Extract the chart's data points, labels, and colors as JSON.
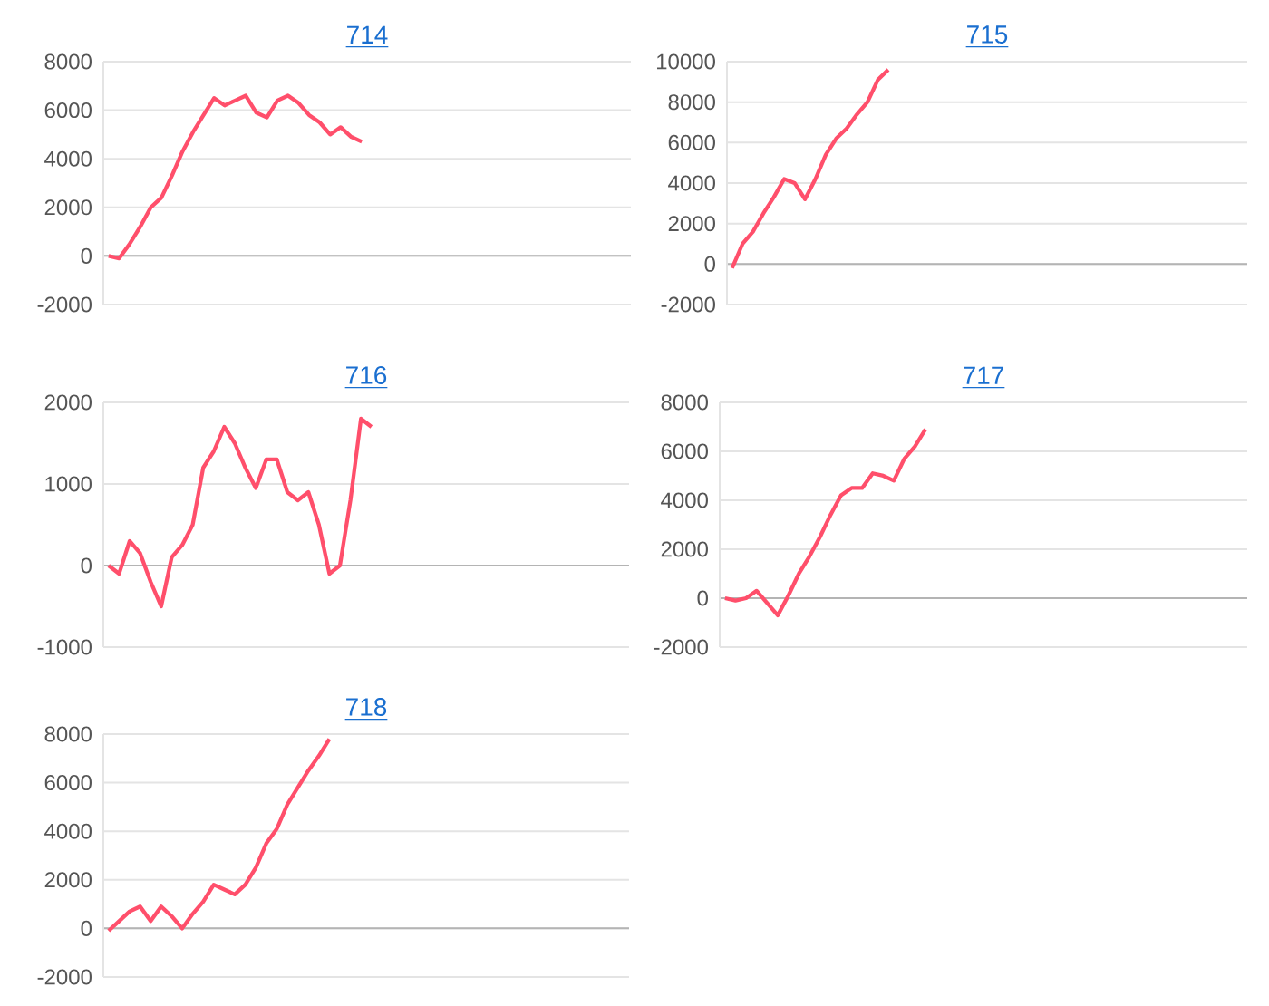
{
  "chart_data": [
    {
      "type": "line",
      "title": "714",
      "color": "#ff4f6b",
      "ylim": [
        -2000,
        8000
      ],
      "yticks": [
        -2000,
        0,
        2000,
        4000,
        6000,
        8000
      ],
      "grid": "y",
      "tick_labels": "y",
      "categories": [
        null,
        null,
        null,
        null,
        null,
        null,
        null,
        null,
        null,
        null,
        null,
        null,
        null,
        null,
        null,
        null,
        null,
        null,
        null,
        null,
        null,
        null,
        null,
        null,
        null,
        null,
        null,
        null,
        null,
        null,
        null,
        null,
        null,
        null,
        null,
        null,
        null,
        null,
        null,
        null,
        null,
        null,
        null,
        null,
        null,
        null,
        null,
        null,
        null,
        null
      ],
      "values": [
        0,
        -100,
        500,
        1200,
        2000,
        2400,
        3300,
        4300,
        5100,
        5800,
        6500,
        6200,
        6400,
        6600,
        5900,
        5700,
        6400,
        6600,
        6300,
        5800,
        5500,
        5000,
        5300,
        4900,
        4700,
        null,
        null,
        null,
        null,
        null,
        null,
        null,
        null,
        null,
        null,
        null,
        null,
        null,
        null,
        null,
        null,
        null,
        null,
        null,
        null,
        null,
        null,
        null,
        null,
        null
      ]
    },
    {
      "type": "line",
      "title": "715",
      "color": "#ff4f6b",
      "ylim": [
        -2000,
        10000
      ],
      "yticks": [
        -2000,
        0,
        2000,
        4000,
        6000,
        8000,
        10000
      ],
      "grid": "y",
      "tick_labels": "y",
      "categories": [
        null,
        null,
        null,
        null,
        null,
        null,
        null,
        null,
        null,
        null,
        null,
        null,
        null,
        null,
        null,
        null,
        null,
        null,
        null,
        null,
        null,
        null,
        null,
        null,
        null,
        null,
        null,
        null,
        null,
        null,
        null,
        null,
        null,
        null,
        null,
        null,
        null,
        null,
        null,
        null,
        null,
        null,
        null,
        null,
        null,
        null,
        null,
        null,
        null,
        null
      ],
      "values": [
        -200,
        1000,
        1600,
        2500,
        3300,
        4200,
        4000,
        3200,
        4200,
        5400,
        6200,
        6700,
        7400,
        8000,
        9100,
        9600,
        null,
        null,
        null,
        null,
        null,
        null,
        null,
        null,
        null,
        null,
        null,
        null,
        null,
        null,
        null,
        null,
        null,
        null,
        null,
        null,
        null,
        null,
        null,
        null,
        null,
        null,
        null,
        null,
        null,
        null,
        null,
        null,
        null,
        null
      ]
    },
    {
      "type": "line",
      "title": "716",
      "color": "#ff4f6b",
      "ylim": [
        -1000,
        2000
      ],
      "yticks": [
        -1000,
        0,
        1000,
        2000
      ],
      "grid": "y",
      "tick_labels": "y",
      "categories": [
        null,
        null,
        null,
        null,
        null,
        null,
        null,
        null,
        null,
        null,
        null,
        null,
        null,
        null,
        null,
        null,
        null,
        null,
        null,
        null,
        null,
        null,
        null,
        null,
        null,
        null,
        null,
        null,
        null,
        null,
        null,
        null,
        null,
        null,
        null,
        null,
        null,
        null,
        null,
        null,
        null,
        null,
        null,
        null,
        null,
        null,
        null,
        null,
        null,
        null
      ],
      "values": [
        0,
        -100,
        300,
        150,
        -200,
        -500,
        100,
        250,
        500,
        1200,
        1400,
        1700,
        1500,
        1200,
        950,
        1300,
        1300,
        900,
        800,
        900,
        500,
        -100,
        0,
        800,
        1800,
        1700,
        null,
        null,
        null,
        null,
        null,
        null,
        null,
        null,
        null,
        null,
        null,
        null,
        null,
        null,
        null,
        null,
        null,
        null,
        null,
        null,
        null,
        null,
        null,
        null
      ]
    },
    {
      "type": "line",
      "title": "717",
      "color": "#ff4f6b",
      "ylim": [
        -2000,
        8000
      ],
      "yticks": [
        -2000,
        0,
        2000,
        4000,
        6000,
        8000
      ],
      "grid": "y",
      "tick_labels": "y",
      "categories": [
        null,
        null,
        null,
        null,
        null,
        null,
        null,
        null,
        null,
        null,
        null,
        null,
        null,
        null,
        null,
        null,
        null,
        null,
        null,
        null,
        null,
        null,
        null,
        null,
        null,
        null,
        null,
        null,
        null,
        null,
        null,
        null,
        null,
        null,
        null,
        null,
        null,
        null,
        null,
        null,
        null,
        null,
        null,
        null,
        null,
        null,
        null,
        null,
        null,
        null
      ],
      "values": [
        0,
        -100,
        0,
        300,
        -200,
        -700,
        100,
        1000,
        1700,
        2500,
        3400,
        4200,
        4500,
        4500,
        5100,
        5000,
        4800,
        5700,
        6200,
        6900,
        null,
        null,
        null,
        null,
        null,
        null,
        null,
        null,
        null,
        null,
        null,
        null,
        null,
        null,
        null,
        null,
        null,
        null,
        null,
        null,
        null,
        null,
        null,
        null,
        null,
        null,
        null,
        null,
        null,
        null
      ]
    },
    {
      "type": "line",
      "title": "718",
      "color": "#ff4f6b",
      "ylim": [
        -2000,
        8000
      ],
      "yticks": [
        -2000,
        0,
        2000,
        4000,
        6000,
        8000
      ],
      "grid": "y",
      "tick_labels": "y",
      "categories": [
        null,
        null,
        null,
        null,
        null,
        null,
        null,
        null,
        null,
        null,
        null,
        null,
        null,
        null,
        null,
        null,
        null,
        null,
        null,
        null,
        null,
        null,
        null,
        null,
        null,
        null,
        null,
        null,
        null,
        null,
        null,
        null,
        null,
        null,
        null,
        null,
        null,
        null,
        null,
        null,
        null,
        null,
        null,
        null,
        null,
        null,
        null,
        null,
        null,
        null
      ],
      "values": [
        -100,
        300,
        700,
        900,
        300,
        900,
        500,
        0,
        600,
        1100,
        1800,
        1600,
        1400,
        1800,
        2500,
        3500,
        4100,
        5100,
        5800,
        6500,
        7100,
        7800,
        null,
        null,
        null,
        null,
        null,
        null,
        null,
        null,
        null,
        null,
        null,
        null,
        null,
        null,
        null,
        null,
        null,
        null,
        null,
        null,
        null,
        null,
        null,
        null,
        null,
        null,
        null,
        null
      ]
    }
  ]
}
